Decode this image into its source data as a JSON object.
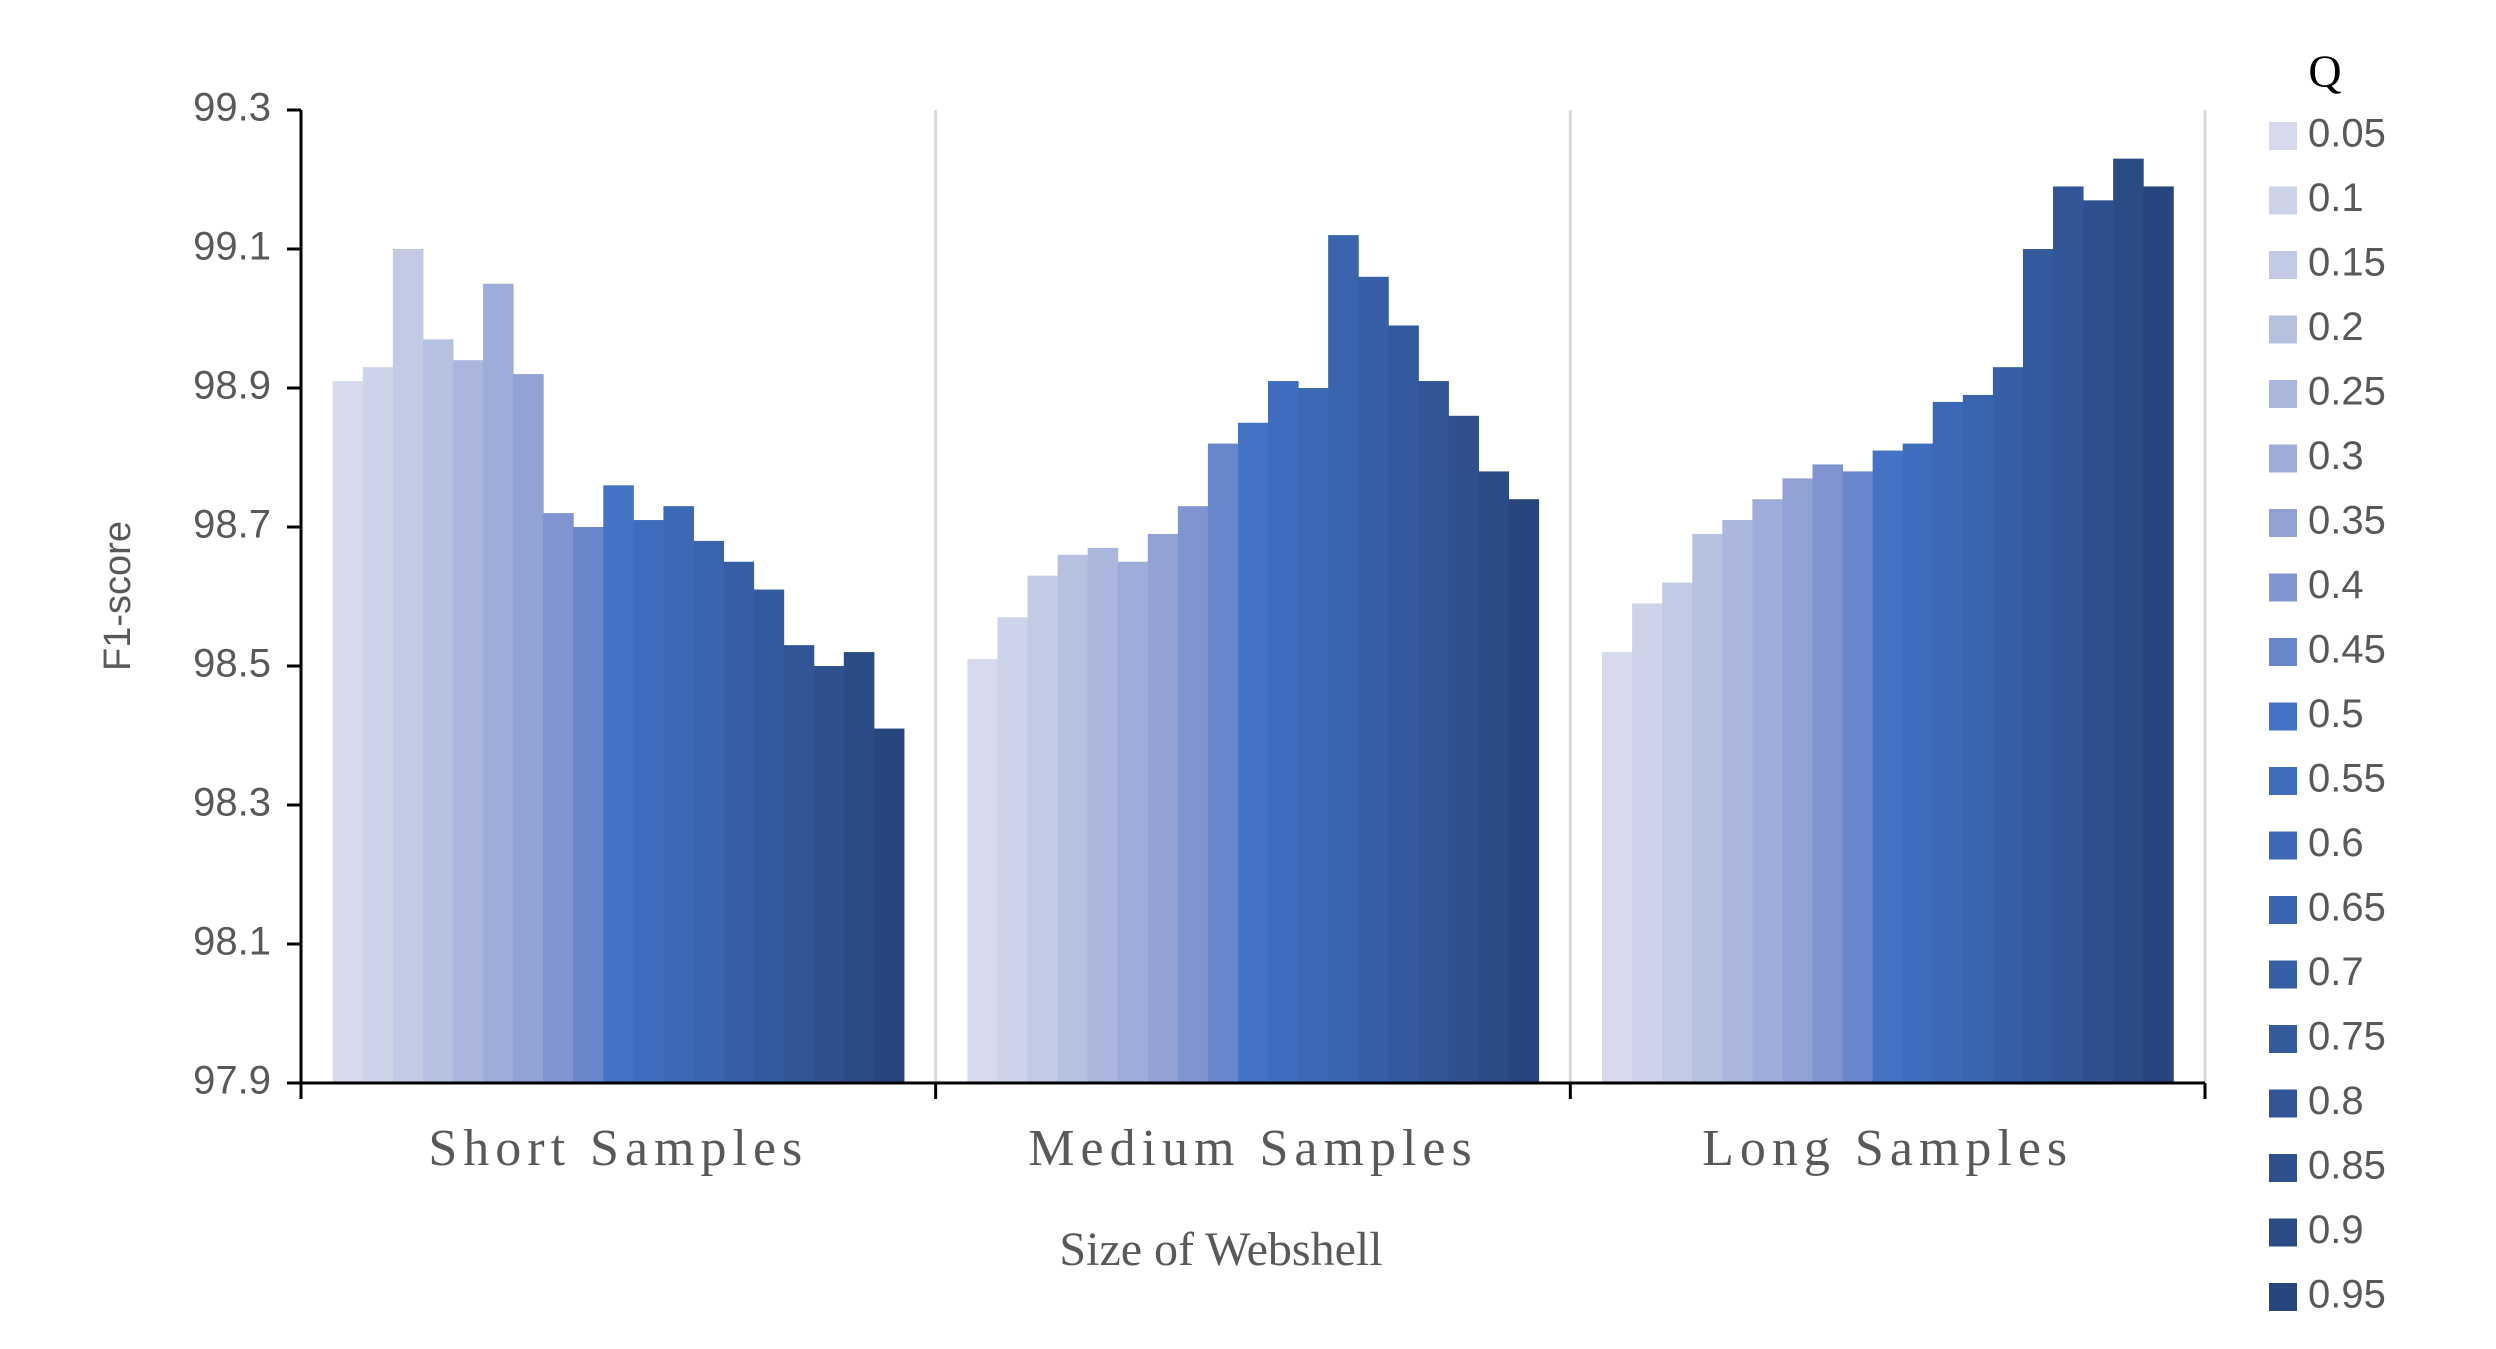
{
  "chart_data": {
    "type": "bar",
    "y_label": "F1-score",
    "x_label": "Size of Webshell",
    "legend_title": "Q",
    "categories": [
      "Short Samples",
      "Medium Samples",
      "Long Samples"
    ],
    "ylim": [
      97.9,
      99.3
    ],
    "yticks": [
      97.9,
      98.1,
      98.3,
      98.5,
      98.7,
      98.9,
      99.1,
      99.3
    ],
    "legend": "right",
    "series": [
      {
        "name": "0.05",
        "color": "#d6daec",
        "values": [
          98.91,
          98.51,
          98.52
        ]
      },
      {
        "name": "0.1",
        "color": "#cdd3e9",
        "values": [
          98.93,
          98.57,
          98.59
        ]
      },
      {
        "name": "0.15",
        "color": "#c2cae5",
        "values": [
          99.1,
          98.63,
          98.62
        ]
      },
      {
        "name": "0.2",
        "color": "#b6c0e1",
        "values": [
          98.97,
          98.66,
          98.69
        ]
      },
      {
        "name": "0.25",
        "color": "#aab6dd",
        "values": [
          98.94,
          98.67,
          98.71
        ]
      },
      {
        "name": "0.3",
        "color": "#9eacd9",
        "values": [
          99.05,
          98.65,
          98.74
        ]
      },
      {
        "name": "0.35",
        "color": "#92a2d5",
        "values": [
          98.92,
          98.69,
          98.77
        ]
      },
      {
        "name": "0.4",
        "color": "#7f94d0",
        "values": [
          98.72,
          98.73,
          98.79
        ]
      },
      {
        "name": "0.45",
        "color": "#6886cb",
        "values": [
          98.7,
          98.82,
          98.78
        ]
      },
      {
        "name": "0.5",
        "color": "#4472c4",
        "values": [
          98.76,
          98.85,
          98.81
        ]
      },
      {
        "name": "0.55",
        "color": "#406cbd",
        "values": [
          98.71,
          98.91,
          98.82
        ]
      },
      {
        "name": "0.6",
        "color": "#3d68b6",
        "values": [
          98.73,
          98.9,
          98.88
        ]
      },
      {
        "name": "0.65",
        "color": "#3a64ae",
        "values": [
          98.68,
          99.12,
          98.89
        ]
      },
      {
        "name": "0.7",
        "color": "#375fa6",
        "values": [
          98.65,
          99.06,
          98.93
        ]
      },
      {
        "name": "0.75",
        "color": "#345a9e",
        "values": [
          98.61,
          98.99,
          99.1
        ]
      },
      {
        "name": "0.8",
        "color": "#315596",
        "values": [
          98.53,
          98.91,
          99.19
        ]
      },
      {
        "name": "0.85",
        "color": "#2e508e",
        "values": [
          98.5,
          98.86,
          99.17
        ]
      },
      {
        "name": "0.9",
        "color": "#2b4b86",
        "values": [
          98.52,
          98.78,
          99.23
        ]
      },
      {
        "name": "0.95",
        "color": "#28467e",
        "values": [
          98.41,
          98.74,
          99.19
        ]
      }
    ]
  }
}
